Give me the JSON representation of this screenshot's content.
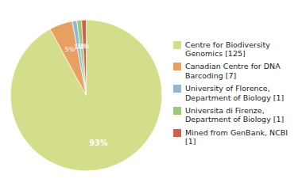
{
  "chart_data": {
    "type": "pie",
    "categories": [
      "Centre for Biodiversity\nGenomics [125]",
      "Canadian Centre for DNA\nBarcoding [7]",
      "University of Florence,\nDepartment of Biology [1]",
      "Universita di Firenze,\nDepartment of Biology [1]",
      "Mined from GenBank, NCBI [1]"
    ],
    "values": [
      93,
      5,
      1,
      1,
      1
    ],
    "value_labels": [
      "93%",
      "5%",
      "1%",
      "1%",
      "1%"
    ],
    "colors": [
      "#d4de8a",
      "#e8a060",
      "#90b8d8",
      "#9ec87a",
      "#d06050"
    ],
    "data_labels": true,
    "legend": "right"
  }
}
